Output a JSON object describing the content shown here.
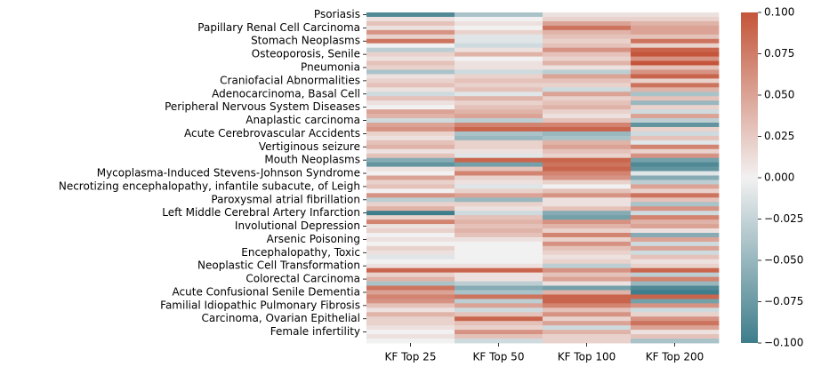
{
  "chart_data": {
    "type": "heatmap",
    "columns": [
      "KF Top 25",
      "KF Top 50",
      "KF Top 100",
      "KF Top 200"
    ],
    "categories": [
      "Psoriasis",
      null,
      null,
      "Papillary Renal Cell Carcinoma",
      null,
      null,
      "Stomach Neoplasms",
      null,
      null,
      "Osteoporosis, Senile",
      null,
      null,
      "Pneumonia",
      null,
      null,
      "Craniofacial Abnormalities",
      null,
      null,
      "Adenocarcinoma, Basal Cell",
      null,
      null,
      "Peripheral Nervous System Diseases",
      null,
      null,
      "Anaplastic carcinoma",
      null,
      null,
      "Acute Cerebrovascular Accidents",
      null,
      null,
      "Vertiginous seizure",
      null,
      null,
      "Mouth Neoplasms",
      null,
      null,
      "Mycoplasma-Induced Stevens-Johnson Syndrome",
      null,
      null,
      "Necrotizing encephalopathy, infantile subacute, of Leigh",
      null,
      null,
      "Paroxysmal atrial fibrillation",
      null,
      null,
      "Left Middle Cerebral Artery Infarction",
      null,
      null,
      "Involutional Depression",
      null,
      null,
      "Arsenic Poisoning",
      null,
      null,
      "Encephalopathy, Toxic",
      null,
      null,
      "Neoplastic Cell Transformation",
      null,
      null,
      "Colorectal Carcinoma",
      null,
      null,
      "Acute Confusional Senile Dementia",
      null,
      null,
      "Familial Idiopathic Pulmonary Fibrosis",
      null,
      null,
      "Carcinoma, Ovarian Epithelial",
      null,
      null,
      "Female infertility",
      null,
      null
    ],
    "values": [
      [
        -0.09,
        -0.04,
        0.01,
        0.01
      ],
      [
        0.01,
        0.0,
        0.02,
        0.02
      ],
      [
        0.03,
        0.01,
        0.05,
        0.04
      ],
      [
        0.01,
        0.0,
        0.08,
        0.05
      ],
      [
        0.06,
        0.02,
        0.04,
        0.05
      ],
      [
        0.02,
        -0.01,
        0.03,
        0.03
      ],
      [
        0.08,
        -0.01,
        0.02,
        0.08
      ],
      [
        0.0,
        -0.02,
        0.03,
        0.02
      ],
      [
        -0.03,
        0.01,
        0.06,
        0.09
      ],
      [
        0.02,
        0.04,
        0.03,
        0.1
      ],
      [
        0.01,
        0.0,
        0.02,
        0.06
      ],
      [
        0.03,
        0.01,
        0.04,
        0.1
      ],
      [
        0.02,
        0.01,
        0.01,
        0.03
      ],
      [
        -0.04,
        -0.02,
        -0.03,
        0.06
      ],
      [
        0.01,
        0.02,
        0.05,
        0.09
      ],
      [
        0.02,
        0.03,
        0.03,
        0.02
      ],
      [
        0.03,
        0.02,
        0.02,
        0.08
      ],
      [
        0.01,
        0.03,
        -0.02,
        0.04
      ],
      [
        -0.02,
        -0.01,
        0.05,
        -0.04
      ],
      [
        0.03,
        0.04,
        0.02,
        0.03
      ],
      [
        0.01,
        0.02,
        0.03,
        -0.05
      ],
      [
        0.0,
        0.03,
        0.04,
        0.02
      ],
      [
        0.05,
        0.04,
        0.02,
        -0.02
      ],
      [
        0.04,
        0.05,
        0.01,
        0.05
      ],
      [
        -0.02,
        -0.03,
        0.03,
        -0.03
      ],
      [
        0.05,
        0.07,
        0.07,
        -0.08
      ],
      [
        0.06,
        0.09,
        0.09,
        0.02
      ],
      [
        0.02,
        -0.04,
        -0.05,
        -0.02
      ],
      [
        0.01,
        -0.05,
        -0.04,
        0.03
      ],
      [
        0.03,
        0.02,
        0.04,
        -0.01
      ],
      [
        0.04,
        0.02,
        0.05,
        0.07
      ],
      [
        0.01,
        0.01,
        0.03,
        0.02
      ],
      [
        0.03,
        -0.01,
        0.02,
        0.06
      ],
      [
        -0.06,
        0.09,
        0.09,
        -0.07
      ],
      [
        -0.08,
        -0.07,
        0.08,
        -0.09
      ],
      [
        0.01,
        0.03,
        0.09,
        -0.08
      ],
      [
        0.0,
        0.07,
        0.07,
        -0.01
      ],
      [
        0.05,
        0.02,
        0.06,
        -0.06
      ],
      [
        0.02,
        0.01,
        0.02,
        -0.03
      ],
      [
        0.03,
        -0.01,
        0.0,
        0.05
      ],
      [
        0.0,
        0.02,
        0.03,
        0.02
      ],
      [
        0.06,
        0.05,
        0.06,
        0.08
      ],
      [
        -0.03,
        -0.05,
        0.01,
        0.03
      ],
      [
        0.02,
        0.02,
        0.01,
        -0.04
      ],
      [
        0.04,
        0.01,
        0.03,
        0.06
      ],
      [
        -0.1,
        -0.02,
        -0.06,
        -0.02
      ],
      [
        0.02,
        0.03,
        -0.07,
        0.07
      ],
      [
        0.07,
        0.04,
        0.06,
        0.04
      ],
      [
        0.01,
        0.03,
        0.04,
        0.05
      ],
      [
        0.02,
        0.04,
        0.02,
        0.01
      ],
      [
        0.0,
        0.03,
        0.07,
        -0.06
      ],
      [
        0.01,
        0.01,
        0.02,
        0.05
      ],
      [
        0.0,
        0.0,
        0.06,
        -0.02
      ],
      [
        0.02,
        0.0,
        0.03,
        0.05
      ],
      [
        0.01,
        0.0,
        0.02,
        -0.02
      ],
      [
        -0.01,
        0.0,
        0.01,
        0.03
      ],
      [
        0.0,
        0.0,
        0.02,
        0.01
      ],
      [
        0.01,
        0.01,
        -0.03,
        0.02
      ],
      [
        0.09,
        0.09,
        0.06,
        0.09
      ],
      [
        0.02,
        0.01,
        0.03,
        -0.03
      ],
      [
        0.04,
        0.01,
        0.05,
        0.07
      ],
      [
        -0.04,
        -0.03,
        0.01,
        -0.05
      ],
      [
        0.08,
        -0.06,
        -0.07,
        -0.09
      ],
      [
        0.05,
        -0.04,
        0.04,
        -0.1
      ],
      [
        0.07,
        0.08,
        0.09,
        0.09
      ],
      [
        0.06,
        -0.03,
        0.09,
        -0.07
      ],
      [
        0.03,
        0.05,
        0.07,
        0.06
      ],
      [
        0.01,
        -0.02,
        0.03,
        -0.02
      ],
      [
        0.04,
        0.03,
        0.06,
        0.02
      ],
      [
        0.02,
        0.09,
        0.02,
        0.06
      ],
      [
        0.02,
        0.03,
        0.05,
        0.08
      ],
      [
        0.01,
        0.02,
        -0.02,
        0.05
      ],
      [
        0.0,
        0.06,
        0.04,
        0.01
      ],
      [
        0.01,
        0.03,
        0.02,
        0.03
      ],
      [
        0.0,
        -0.02,
        0.02,
        -0.04
      ]
    ],
    "colormap": [
      "#3e7d8b",
      "#f2f1f1",
      "#c4553a"
    ],
    "clim": [
      -0.1,
      0.1
    ],
    "cticks": [
      {
        "value": 0.1,
        "label": "0.100"
      },
      {
        "value": 0.075,
        "label": "0.075"
      },
      {
        "value": 0.05,
        "label": "0.050"
      },
      {
        "value": 0.025,
        "label": "0.025"
      },
      {
        "value": 0,
        "label": "0.000"
      },
      {
        "value": -0.025,
        "label": "−0.025"
      },
      {
        "value": -0.05,
        "label": "−0.050"
      },
      {
        "value": -0.075,
        "label": "−0.075"
      },
      {
        "value": -0.1,
        "label": "−0.100"
      }
    ]
  }
}
